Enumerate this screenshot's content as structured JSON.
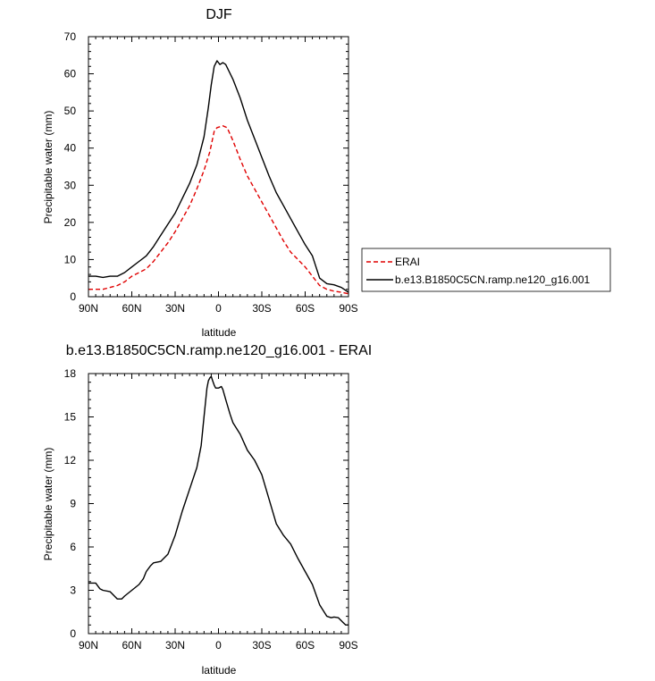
{
  "chart_data": [
    {
      "type": "line",
      "title": "DJF",
      "xlabel": "latitude",
      "ylabel": "Precipitable water (mm)",
      "xlim": [
        90,
        -90
      ],
      "ylim": [
        0,
        70
      ],
      "x_tick_values": [
        90,
        60,
        30,
        0,
        -30,
        -60,
        -90
      ],
      "x_tick_labels": [
        "90N",
        "60N",
        "30N",
        "0",
        "30S",
        "60S",
        "90S"
      ],
      "y_tick_values": [
        0,
        10,
        20,
        30,
        40,
        50,
        60,
        70
      ],
      "y_tick_labels": [
        "0",
        "10",
        "20",
        "30",
        "40",
        "50",
        "60",
        "70"
      ],
      "legend_position": "right",
      "series": [
        {
          "name": "ERAI",
          "color": "#e00000",
          "dash": "dashed",
          "points": [
            [
              90,
              2.0
            ],
            [
              85,
              2.0
            ],
            [
              80,
              2.0
            ],
            [
              75,
              2.5
            ],
            [
              70,
              3.0
            ],
            [
              65,
              4.0
            ],
            [
              60,
              5.5
            ],
            [
              55,
              6.5
            ],
            [
              50,
              7.5
            ],
            [
              45,
              9.5
            ],
            [
              40,
              12.0
            ],
            [
              35,
              14.5
            ],
            [
              30,
              17.5
            ],
            [
              25,
              21.0
            ],
            [
              20,
              24.5
            ],
            [
              15,
              29.0
            ],
            [
              10,
              34.0
            ],
            [
              6,
              39.0
            ],
            [
              3,
              44.5
            ],
            [
              1,
              45.5
            ],
            [
              -3,
              46.0
            ],
            [
              -6,
              45.5
            ],
            [
              -10,
              42.0
            ],
            [
              -15,
              37.0
            ],
            [
              -20,
              32.5
            ],
            [
              -25,
              29.0
            ],
            [
              -30,
              25.5
            ],
            [
              -35,
              22.0
            ],
            [
              -40,
              18.5
            ],
            [
              -45,
              15.0
            ],
            [
              -50,
              12.0
            ],
            [
              -55,
              10.0
            ],
            [
              -60,
              8.0
            ],
            [
              -65,
              5.5
            ],
            [
              -70,
              3.0
            ],
            [
              -75,
              2.0
            ],
            [
              -80,
              1.5
            ],
            [
              -85,
              1.2
            ],
            [
              -90,
              0.8
            ]
          ]
        },
        {
          "name": "b.e13.B1850C5CN.ramp.ne120_g16.001",
          "color": "#000000",
          "dash": "solid",
          "points": [
            [
              90,
              5.5
            ],
            [
              85,
              5.5
            ],
            [
              80,
              5.2
            ],
            [
              75,
              5.5
            ],
            [
              70,
              5.5
            ],
            [
              65,
              6.5
            ],
            [
              60,
              8.0
            ],
            [
              55,
              9.5
            ],
            [
              50,
              11.0
            ],
            [
              45,
              13.5
            ],
            [
              40,
              16.5
            ],
            [
              35,
              19.5
            ],
            [
              30,
              22.5
            ],
            [
              25,
              26.5
            ],
            [
              20,
              30.5
            ],
            [
              15,
              35.5
            ],
            [
              10,
              43.0
            ],
            [
              7,
              51.0
            ],
            [
              5,
              57.0
            ],
            [
              3,
              62.0
            ],
            [
              1,
              63.5
            ],
            [
              -1,
              62.5
            ],
            [
              -3,
              63.0
            ],
            [
              -5,
              62.5
            ],
            [
              -10,
              58.5
            ],
            [
              -15,
              53.5
            ],
            [
              -20,
              47.5
            ],
            [
              -25,
              42.5
            ],
            [
              -30,
              37.5
            ],
            [
              -35,
              32.5
            ],
            [
              -40,
              28.0
            ],
            [
              -45,
              24.5
            ],
            [
              -50,
              21.0
            ],
            [
              -55,
              17.5
            ],
            [
              -60,
              14.0
            ],
            [
              -65,
              11.0
            ],
            [
              -70,
              5.0
            ],
            [
              -75,
              3.5
            ],
            [
              -80,
              3.2
            ],
            [
              -85,
              2.5
            ],
            [
              -90,
              1.2
            ]
          ]
        }
      ]
    },
    {
      "type": "line",
      "title": "b.e13.B1850C5CN.ramp.ne120_g16.001 - ERAI",
      "xlabel": "latitude",
      "ylabel": "Precipitable water (mm)",
      "xlim": [
        90,
        -90
      ],
      "ylim": [
        0,
        18
      ],
      "x_tick_values": [
        90,
        60,
        30,
        0,
        -30,
        -60,
        -90
      ],
      "x_tick_labels": [
        "90N",
        "60N",
        "30N",
        "0",
        "30S",
        "60S",
        "90S"
      ],
      "y_tick_values": [
        0,
        3,
        6,
        9,
        12,
        15,
        18
      ],
      "y_tick_labels": [
        "0",
        "3",
        "6",
        "9",
        "12",
        "15",
        "18"
      ],
      "series": [
        {
          "color": "#000000",
          "dash": "solid",
          "points": [
            [
              90,
              3.5
            ],
            [
              85,
              3.5
            ],
            [
              82,
              3.1
            ],
            [
              80,
              3.0
            ],
            [
              75,
              2.9
            ],
            [
              72,
              2.6
            ],
            [
              70,
              2.4
            ],
            [
              67,
              2.4
            ],
            [
              65,
              2.6
            ],
            [
              60,
              3.0
            ],
            [
              55,
              3.4
            ],
            [
              52,
              3.8
            ],
            [
              50,
              4.3
            ],
            [
              47,
              4.7
            ],
            [
              45,
              4.9
            ],
            [
              40,
              5.0
            ],
            [
              35,
              5.5
            ],
            [
              30,
              6.8
            ],
            [
              25,
              8.5
            ],
            [
              20,
              10.0
            ],
            [
              15,
              11.5
            ],
            [
              12,
              13.0
            ],
            [
              10,
              15.0
            ],
            [
              8,
              17.0
            ],
            [
              7,
              17.5
            ],
            [
              6,
              17.7
            ],
            [
              5,
              17.8
            ],
            [
              4,
              17.5
            ],
            [
              3,
              17.2
            ],
            [
              2,
              17.0
            ],
            [
              0,
              17.0
            ],
            [
              -2,
              17.1
            ],
            [
              -3,
              16.9
            ],
            [
              -5,
              16.2
            ],
            [
              -8,
              15.2
            ],
            [
              -10,
              14.6
            ],
            [
              -15,
              13.8
            ],
            [
              -20,
              12.7
            ],
            [
              -25,
              12.0
            ],
            [
              -30,
              11.0
            ],
            [
              -35,
              9.3
            ],
            [
              -40,
              7.6
            ],
            [
              -45,
              6.8
            ],
            [
              -50,
              6.2
            ],
            [
              -55,
              5.2
            ],
            [
              -60,
              4.3
            ],
            [
              -65,
              3.4
            ],
            [
              -70,
              2.0
            ],
            [
              -75,
              1.2
            ],
            [
              -78,
              1.1
            ],
            [
              -80,
              1.15
            ],
            [
              -83,
              1.1
            ],
            [
              -86,
              0.8
            ],
            [
              -88,
              0.6
            ],
            [
              -90,
              0.6
            ]
          ]
        }
      ]
    }
  ]
}
